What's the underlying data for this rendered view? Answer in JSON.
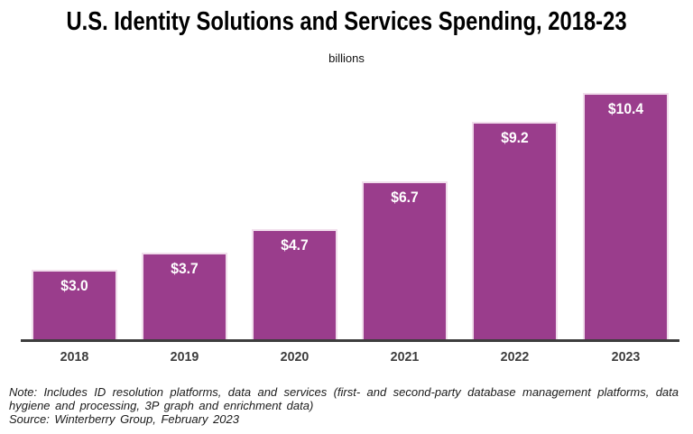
{
  "chart_data": {
    "type": "bar",
    "title": "U.S. Identity Solutions and Services Spending, 2018-23",
    "subtitle": "billions",
    "categories": [
      "2018",
      "2019",
      "2020",
      "2021",
      "2022",
      "2023"
    ],
    "values": [
      3.0,
      3.7,
      4.7,
      6.7,
      9.2,
      10.4
    ],
    "value_labels": [
      "$3.0",
      "$3.7",
      "$4.7",
      "$6.7",
      "$9.2",
      "$10.4"
    ],
    "series_name": "U.S. identity solutions and services spending (billions)",
    "ylim": [
      0,
      10.4
    ],
    "grid": "off",
    "legend": "none",
    "y_axis_shown": false,
    "value_label_position": "inside-top",
    "colors": {
      "bar_fill": "#9A3D8C",
      "bar_border": "#F1DEEC",
      "axis": "#3D3D3D",
      "value_label": "#FFFFFF",
      "title": "#000000",
      "note_text": "#1A1A1A"
    }
  },
  "notes": {
    "line1": "Note: Includes ID resolution platforms, data and services (first- and second-party database management platforms, data",
    "line2": "hygiene and processing, 3P graph and enrichment data)",
    "source": "Source: Winterberry Group, February 2023"
  }
}
